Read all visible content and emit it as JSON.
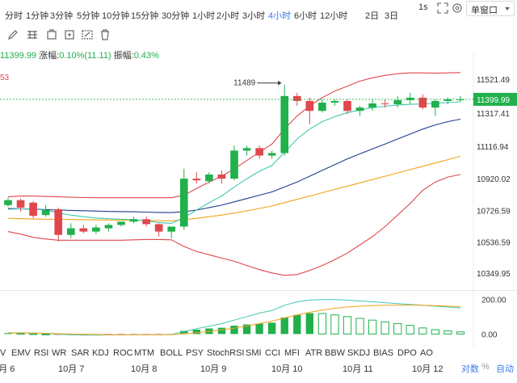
{
  "intervals": [
    "分时",
    "1分钟",
    "3分钟",
    "5分钟",
    "10分钟",
    "15分钟",
    "30分钟",
    "1小时",
    "2小时",
    "3小时",
    "4小时",
    "6小时",
    "12小时",
    "2日",
    "3日"
  ],
  "active_interval": "4小时",
  "topbar": {
    "speed": "1s",
    "window_mode": "单窗口"
  },
  "info": {
    "price": "11399.99",
    "change_label": "涨幅:",
    "change": "0.10%(11.11)",
    "amplitude_label": "振幅:",
    "amplitude": "0.43%"
  },
  "left_partial_value": "53",
  "price_axis": [
    "11521.49",
    "11317.41",
    "11116.94",
    "10920.02",
    "10726.59",
    "10536.59",
    "10349.95"
  ],
  "current_price": "11399.99",
  "high_marker": "11489",
  "macd_axis": [
    "200.00",
    "0.00"
  ],
  "indicators": [
    "V",
    "EMV",
    "RSI",
    "WR",
    "SAR",
    "KDJ",
    "ROC",
    "MTM",
    "BOLL",
    "PSY",
    "StochRSI",
    "SMI",
    "CCI",
    "MFI",
    "ATR",
    "BBW",
    "SKDJ",
    "BIAS",
    "DPO",
    "AO"
  ],
  "dates": [
    "10月 6",
    "10月 7",
    "10月 8",
    "10月 9",
    "10月 10",
    "10月 11",
    "10月 12"
  ],
  "bottom_links": {
    "log": "对数",
    "pct": "%",
    "auto": "自动"
  },
  "colors": {
    "up": "#21b04b",
    "down": "#e0474c",
    "accent": "#3b7de9",
    "ma_dark": "#1f3c8f",
    "ma_orange": "#f4a21a",
    "ma_teal": "#41c8b1"
  },
  "chart_data": {
    "type": "candlestick",
    "ylim": [
      10300,
      11600
    ],
    "candles": [
      {
        "o": 10760,
        "h": 10805,
        "l": 10750,
        "c": 10790
      },
      {
        "o": 10790,
        "h": 10800,
        "l": 10720,
        "c": 10745
      },
      {
        "o": 10775,
        "h": 10785,
        "l": 10680,
        "c": 10695
      },
      {
        "o": 10700,
        "h": 10760,
        "l": 10690,
        "c": 10730
      },
      {
        "o": 10735,
        "h": 10745,
        "l": 10540,
        "c": 10580
      },
      {
        "o": 10580,
        "h": 10650,
        "l": 10560,
        "c": 10620
      },
      {
        "o": 10620,
        "h": 10640,
        "l": 10590,
        "c": 10600
      },
      {
        "o": 10600,
        "h": 10640,
        "l": 10585,
        "c": 10625
      },
      {
        "o": 10620,
        "h": 10650,
        "l": 10600,
        "c": 10640
      },
      {
        "o": 10640,
        "h": 10660,
        "l": 10630,
        "c": 10660
      },
      {
        "o": 10660,
        "h": 10690,
        "l": 10650,
        "c": 10675
      },
      {
        "o": 10675,
        "h": 10690,
        "l": 10630,
        "c": 10645
      },
      {
        "o": 10645,
        "h": 10650,
        "l": 10570,
        "c": 10600
      },
      {
        "o": 10600,
        "h": 10620,
        "l": 10560,
        "c": 10630
      },
      {
        "o": 10630,
        "h": 10980,
        "l": 10610,
        "c": 10920
      },
      {
        "o": 10920,
        "h": 10960,
        "l": 10890,
        "c": 10910
      },
      {
        "o": 10905,
        "h": 10960,
        "l": 10890,
        "c": 10945
      },
      {
        "o": 10945,
        "h": 10970,
        "l": 10890,
        "c": 10920
      },
      {
        "o": 10920,
        "h": 11120,
        "l": 10910,
        "c": 11090
      },
      {
        "o": 11090,
        "h": 11120,
        "l": 11060,
        "c": 11105
      },
      {
        "o": 11105,
        "h": 11120,
        "l": 11040,
        "c": 11060
      },
      {
        "o": 11060,
        "h": 11090,
        "l": 11040,
        "c": 11075
      },
      {
        "o": 11075,
        "h": 11489,
        "l": 11060,
        "c": 11420
      },
      {
        "o": 11420,
        "h": 11440,
        "l": 11360,
        "c": 11390
      },
      {
        "o": 11390,
        "h": 11410,
        "l": 11250,
        "c": 11330
      },
      {
        "o": 11330,
        "h": 11400,
        "l": 11320,
        "c": 11380
      },
      {
        "o": 11380,
        "h": 11400,
        "l": 11360,
        "c": 11390
      },
      {
        "o": 11390,
        "h": 11400,
        "l": 11310,
        "c": 11330
      },
      {
        "o": 11330,
        "h": 11360,
        "l": 11300,
        "c": 11350
      },
      {
        "o": 11350,
        "h": 11400,
        "l": 11330,
        "c": 11375
      },
      {
        "o": 11375,
        "h": 11400,
        "l": 11350,
        "c": 11370
      },
      {
        "o": 11370,
        "h": 11420,
        "l": 11350,
        "c": 11395
      },
      {
        "o": 11395,
        "h": 11440,
        "l": 11370,
        "c": 11410
      },
      {
        "o": 11410,
        "h": 11430,
        "l": 11340,
        "c": 11350
      },
      {
        "o": 11350,
        "h": 11400,
        "l": 11300,
        "c": 11390
      },
      {
        "o": 11390,
        "h": 11410,
        "l": 11370,
        "c": 11400
      },
      {
        "o": 11395,
        "h": 11420,
        "l": 11385,
        "c": 11400
      }
    ],
    "upper_band": [
      10810,
      10815,
      10815,
      10812,
      10810,
      10808,
      10806,
      10805,
      10805,
      10805,
      10805,
      10805,
      10805,
      10805,
      10820,
      10860,
      10900,
      10935,
      10980,
      11030,
      11080,
      11130,
      11220,
      11300,
      11360,
      11410,
      11450,
      11480,
      11510,
      11530,
      11545,
      11555,
      11560,
      11560,
      11558,
      11560,
      11562
    ],
    "lower_band": [
      10600,
      10585,
      10565,
      10555,
      10548,
      10548,
      10548,
      10548,
      10548,
      10548,
      10550,
      10552,
      10552,
      10550,
      10510,
      10480,
      10460,
      10440,
      10420,
      10395,
      10370,
      10350,
      10335,
      10340,
      10365,
      10395,
      10430,
      10470,
      10520,
      10570,
      10630,
      10700,
      10770,
      10850,
      10900,
      10930,
      10945
    ],
    "ma_fast": [
      10735,
      10738,
      10735,
      10730,
      10712,
      10700,
      10690,
      10682,
      10678,
      10675,
      10672,
      10665,
      10655,
      10650,
      10685,
      10730,
      10775,
      10815,
      10870,
      10920,
      10965,
      11000,
      11080,
      11160,
      11220,
      11265,
      11295,
      11320,
      11335,
      11350,
      11358,
      11365,
      11370,
      11372,
      11376,
      11380,
      11385
    ],
    "ma_mid": [
      10740,
      10738,
      10736,
      10733,
      10730,
      10728,
      10726,
      10724,
      10722,
      10721,
      10720,
      10718,
      10716,
      10715,
      10720,
      10730,
      10745,
      10760,
      10780,
      10800,
      10820,
      10840,
      10870,
      10900,
      10935,
      10970,
      11005,
      11040,
      11070,
      11100,
      11130,
      11160,
      11190,
      11220,
      11245,
      11265,
      11280
    ],
    "ma_slow": [
      10680,
      10678,
      10676,
      10675,
      10674,
      10673,
      10672,
      10671,
      10670,
      10669,
      10668,
      10667,
      10666,
      10665,
      10672,
      10680,
      10690,
      10700,
      10712,
      10725,
      10740,
      10755,
      10775,
      10795,
      10815,
      10835,
      10855,
      10875,
      10895,
      10915,
      10935,
      10955,
      10975,
      10995,
      11015,
      11035,
      11055
    ],
    "macd_hist": [
      5,
      4,
      2,
      0,
      -4,
      -6,
      -7,
      -6,
      -5,
      -4,
      -3,
      -3,
      -4,
      -3,
      18,
      25,
      32,
      36,
      48,
      55,
      60,
      65,
      95,
      110,
      120,
      118,
      110,
      100,
      90,
      80,
      70,
      60,
      50,
      35,
      25,
      18,
      12
    ],
    "macd_dif": [
      8,
      7,
      5,
      3,
      -2,
      -4,
      -6,
      -6,
      -5,
      -5,
      -4,
      -4,
      -4,
      -3,
      15,
      30,
      45,
      60,
      80,
      100,
      120,
      135,
      165,
      185,
      195,
      198,
      198,
      195,
      190,
      185,
      180,
      175,
      170,
      165,
      160,
      155,
      150
    ],
    "macd_dea": [
      6,
      6,
      5,
      4,
      2,
      0,
      -2,
      -3,
      -4,
      -4,
      -4,
      -4,
      -4,
      -4,
      2,
      8,
      15,
      24,
      34,
      46,
      60,
      74,
      92,
      110,
      125,
      138,
      148,
      155,
      160,
      163,
      165,
      166,
      166,
      165,
      163,
      160,
      157
    ]
  }
}
